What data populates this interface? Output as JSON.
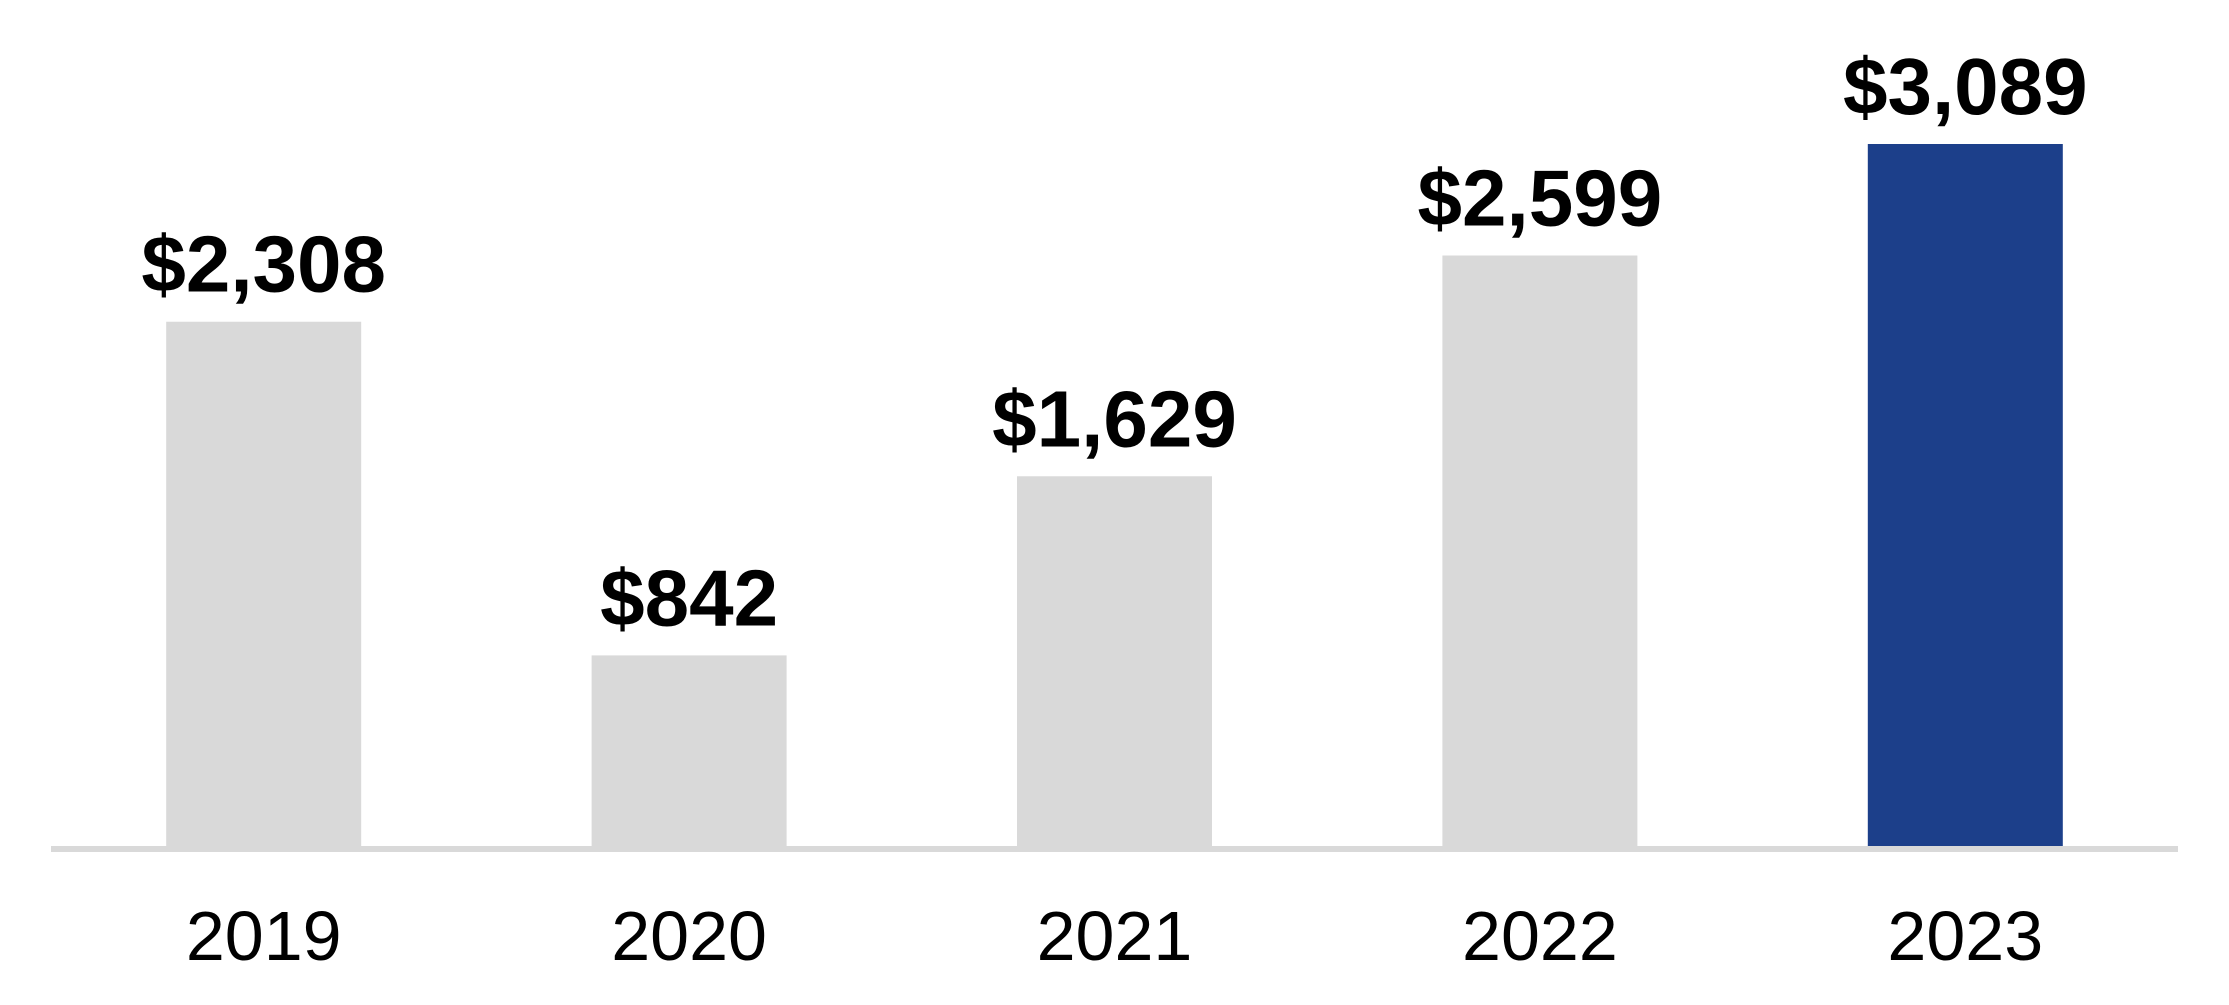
{
  "chart_data": {
    "type": "bar",
    "categories": [
      "2019",
      "2020",
      "2021",
      "2022",
      "2023"
    ],
    "values": [
      2308,
      842,
      1629,
      2599,
      3089
    ],
    "value_labels": [
      "$2,308",
      "$842",
      "$1,629",
      "$2,599",
      "$3,089"
    ],
    "colors": [
      "#d9d9d9",
      "#d9d9d9",
      "#d9d9d9",
      "#d9d9d9",
      "#1c3f8a"
    ]
  }
}
